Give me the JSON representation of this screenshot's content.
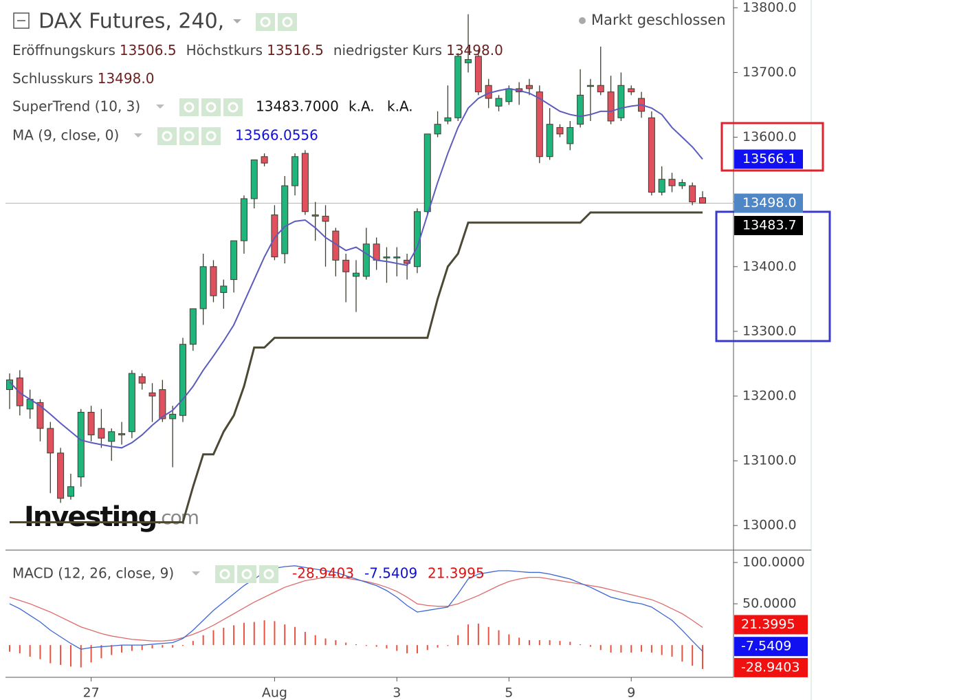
{
  "chart_data": [
    {
      "type": "candlestick",
      "title": "DAX Futures, 240,",
      "status": "Markt geschlossen",
      "ohlc_legend": [
        {
          "label": "Eröffnungskurs",
          "value": "13506.5"
        },
        {
          "label": "Höchstkurs",
          "value": "13516.5"
        },
        {
          "label": "niedrigster Kurs",
          "value": "13498.0"
        },
        {
          "label": "Schlusskurs",
          "value": "13498.0"
        }
      ],
      "categories": [
        null,
        null,
        null,
        null,
        null,
        null,
        null,
        null,
        "27",
        null,
        null,
        null,
        null,
        null,
        null,
        null,
        null,
        null,
        null,
        null,
        null,
        null,
        null,
        null,
        null,
        null,
        "Aug",
        null,
        null,
        null,
        null,
        null,
        null,
        null,
        null,
        null,
        null,
        null,
        "3",
        null,
        null,
        null,
        null,
        null,
        null,
        null,
        null,
        null,
        null,
        "5",
        null,
        null,
        null,
        null,
        null,
        null,
        null,
        null,
        null,
        null,
        null,
        "9",
        null,
        null,
        null,
        null,
        null,
        null,
        null
      ],
      "open": [
        13210,
        13228,
        13180,
        13190,
        13150,
        13112,
        13045,
        13075,
        13175,
        13150,
        13130,
        13140,
        13145,
        13230,
        13205,
        13210,
        13165,
        13170,
        13280,
        13335,
        13400,
        13360,
        13380,
        13440,
        13505,
        13570,
        13480,
        13420,
        13525,
        13575,
        13480,
        13478,
        13455,
        13410,
        13385,
        13385,
        13435,
        13415,
        13414,
        13410,
        13400,
        13485,
        13605,
        13625,
        13630,
        13715,
        13725,
        13680,
        13648,
        13655,
        13675,
        13680,
        13670,
        13570,
        13615,
        13590,
        13620,
        13680,
        13680,
        13670,
        13630,
        13675,
        13660,
        13630,
        13515,
        13535,
        13525,
        13525,
        13506.5
      ],
      "high": [
        13235,
        13240,
        13210,
        13195,
        13160,
        13120,
        13080,
        13180,
        13185,
        13180,
        13150,
        13160,
        13240,
        13235,
        13220,
        13225,
        13185,
        13290,
        13335,
        13420,
        13410,
        13380,
        13440,
        13510,
        13565,
        13575,
        13495,
        13540,
        13575,
        13580,
        13500,
        13495,
        13460,
        13420,
        13410,
        13460,
        13445,
        13430,
        13430,
        13420,
        13490,
        13605,
        13640,
        13680,
        13730,
        13790,
        13735,
        13690,
        13665,
        13680,
        13685,
        13690,
        13680,
        13645,
        13620,
        13625,
        13705,
        13690,
        13740,
        13695,
        13700,
        13680,
        13670,
        13640,
        13555,
        13545,
        13535,
        13530,
        13516.5
      ],
      "low": [
        13180,
        13170,
        13165,
        13130,
        13050,
        13035,
        13040,
        13060,
        13130,
        13120,
        13100,
        13125,
        13135,
        13210,
        13160,
        13160,
        13090,
        13160,
        13270,
        13310,
        13345,
        13335,
        13360,
        13420,
        13490,
        13555,
        13410,
        13405,
        13510,
        13480,
        13440,
        13400,
        13385,
        13345,
        13330,
        13380,
        13395,
        13375,
        13385,
        13380,
        13390,
        13480,
        13600,
        13620,
        13625,
        13700,
        13665,
        13645,
        13640,
        13650,
        13650,
        13665,
        13560,
        13565,
        13600,
        13580,
        13615,
        13625,
        13665,
        13620,
        13625,
        13665,
        13630,
        13510,
        13510,
        13515,
        13520,
        13495,
        13498
      ],
      "close": [
        13225,
        13185,
        13195,
        13150,
        13112,
        13042,
        13060,
        13175,
        13140,
        13135,
        13145,
        13142,
        13235,
        13220,
        13200,
        13165,
        13172,
        13280,
        13335,
        13400,
        13355,
        13370,
        13440,
        13505,
        13565,
        13560,
        13415,
        13525,
        13570,
        13485,
        13478,
        13470,
        13410,
        13392,
        13390,
        13435,
        13410,
        13415,
        13415,
        13405,
        13485,
        13605,
        13620,
        13630,
        13725,
        13720,
        13670,
        13660,
        13660,
        13675,
        13670,
        13675,
        13570,
        13620,
        13605,
        13615,
        13665,
        13680,
        13670,
        13625,
        13680,
        13670,
        13640,
        13515,
        13535,
        13525,
        13530,
        13500,
        13498
      ],
      "colors": {
        "up": "#1fb57c",
        "down": "#e0505e",
        "outline": "#3d3d2e"
      },
      "price_label": "13498.0",
      "price_line_color": "#9bbbe8",
      "lines": [
        {
          "name": "SuperTrend (10, 3)",
          "color": "#4b4834",
          "legend_values": [
            "13483.7000",
            "k.A.",
            "k.A."
          ],
          "legend_color": "#111111",
          "last_label": "13483.7",
          "badge_color": "#000000",
          "values": [
            13005,
            13005,
            13005,
            13005,
            13005,
            13005,
            13005,
            13005,
            13005,
            13005,
            13005,
            13005,
            13005,
            13005,
            13005,
            13005,
            13005,
            13005,
            13060,
            13110,
            13110,
            13145,
            13170,
            13215,
            13275,
            13275,
            13290,
            13290,
            13290,
            13290,
            13290,
            13290,
            13290,
            13290,
            13290,
            13290,
            13290,
            13290,
            13290,
            13290,
            13290,
            13290,
            13350,
            13400,
            13420,
            13468,
            13468,
            13468,
            13468,
            13468,
            13468,
            13468,
            13468,
            13468,
            13468,
            13468,
            13468,
            13483.7,
            13483.7,
            13483.7,
            13483.7,
            13483.7,
            13483.7,
            13483.7,
            13483.7,
            13483.7,
            13483.7,
            13483.7,
            13483.7
          ]
        },
        {
          "name": "MA (9, close, 0)",
          "color": "#5b5bbd",
          "legend_values": [
            "13566.0556"
          ],
          "legend_color": "#1010d0",
          "last_label": "13566.1",
          "badge_color": "#1010f0",
          "values": [
            13222,
            13205,
            13195,
            13185,
            13172,
            13158,
            13145,
            13132,
            13128,
            13125,
            13122,
            13120,
            13128,
            13140,
            13155,
            13168,
            13178,
            13195,
            13215,
            13240,
            13262,
            13285,
            13310,
            13345,
            13380,
            13415,
            13445,
            13462,
            13470,
            13472,
            13460,
            13445,
            13435,
            13425,
            13430,
            13420,
            13410,
            13408,
            13405,
            13402,
            13430,
            13480,
            13530,
            13575,
            13615,
            13645,
            13660,
            13668,
            13672,
            13675,
            13672,
            13668,
            13660,
            13650,
            13640,
            13635,
            13632,
            13635,
            13640,
            13640,
            13645,
            13648,
            13650,
            13645,
            13635,
            13615,
            13600,
            13585,
            13566.0556
          ]
        }
      ],
      "ylim": [
        12962,
        13812
      ],
      "yticks": [
        {
          "value": 13000,
          "label": "13000.0"
        },
        {
          "value": 13100,
          "label": "13100.0"
        },
        {
          "value": 13200,
          "label": "13200.0"
        },
        {
          "value": 13300,
          "label": "13300.0"
        },
        {
          "value": 13400,
          "label": "13400.0"
        },
        {
          "value": 13500,
          "label": "13500.0"
        },
        {
          "value": 13600,
          "label": "13600.0"
        },
        {
          "value": 13700,
          "label": "13700.0"
        },
        {
          "value": 13800,
          "label": "13800.0"
        }
      ],
      "grid": false,
      "watermark": {
        "brand": "Investing",
        "suffix": ".com"
      }
    },
    {
      "type": "macd",
      "title": "MACD (12, 26, close, 9)",
      "histogram": {
        "color": "#e8513f",
        "legend_value": "-28.9403",
        "legend_color": "#e01010",
        "last_label": "-28.9403",
        "badge_color": "#f01010",
        "values": [
          -8,
          -10,
          -14,
          -17,
          -22,
          -24,
          -26,
          -27,
          -21,
          -16,
          -12,
          -9,
          -7,
          -6,
          -4,
          -3,
          -3,
          -1,
          5,
          12,
          18,
          21,
          24,
          27,
          28,
          30,
          29,
          25,
          22,
          16,
          12,
          8,
          6,
          3,
          1,
          -1,
          -2,
          -4,
          -7,
          -10,
          -10,
          -6,
          -3,
          -1,
          12,
          25,
          26,
          22,
          18,
          13,
          9,
          6,
          6,
          6,
          5,
          4,
          1,
          -2,
          -6,
          -9,
          -9,
          -9,
          -8,
          -9,
          -12,
          -14,
          -20,
          -25,
          -28.9403
        ]
      },
      "macd": {
        "color": "#3a66d6",
        "legend_value": "-7.5409",
        "legend_color": "#1010d0",
        "last_label": "-7.5409",
        "badge_color": "#1010f0",
        "values": [
          50,
          44,
          36,
          28,
          18,
          10,
          2,
          -5,
          -3,
          -2,
          -1,
          0,
          0,
          0,
          1,
          2,
          3,
          8,
          18,
          30,
          42,
          52,
          62,
          72,
          80,
          88,
          93,
          95,
          96,
          94,
          92,
          90,
          88,
          84,
          80,
          76,
          72,
          66,
          58,
          48,
          40,
          42,
          44,
          46,
          62,
          80,
          86,
          88,
          90,
          90,
          89,
          88,
          88,
          86,
          83,
          80,
          75,
          70,
          64,
          58,
          55,
          52,
          50,
          46,
          38,
          30,
          18,
          5,
          -7.5409
        ]
      },
      "signal": {
        "color": "#e06a6a",
        "legend_value": "21.3995",
        "legend_color": "#e01010",
        "last_label": "21.3995",
        "badge_color": "#f01010",
        "values": [
          58,
          54,
          50,
          45,
          40,
          34,
          28,
          22,
          18,
          14,
          11,
          9,
          7,
          6,
          5,
          5,
          6,
          9,
          13,
          18,
          24,
          31,
          38,
          45,
          52,
          58,
          64,
          70,
          74,
          78,
          80,
          82,
          82,
          81,
          79,
          77,
          74,
          70,
          65,
          58,
          50,
          48,
          47,
          47,
          50,
          55,
          60,
          66,
          72,
          77,
          80,
          82,
          82,
          80,
          78,
          76,
          74,
          72,
          70,
          67,
          64,
          61,
          58,
          55,
          50,
          44,
          38,
          30,
          21.3995
        ]
      },
      "ylim": [
        -39,
        115
      ],
      "yticks": [
        {
          "value": 50,
          "label": "50.0000"
        },
        {
          "value": 100,
          "label": "100.0000"
        }
      ]
    }
  ]
}
